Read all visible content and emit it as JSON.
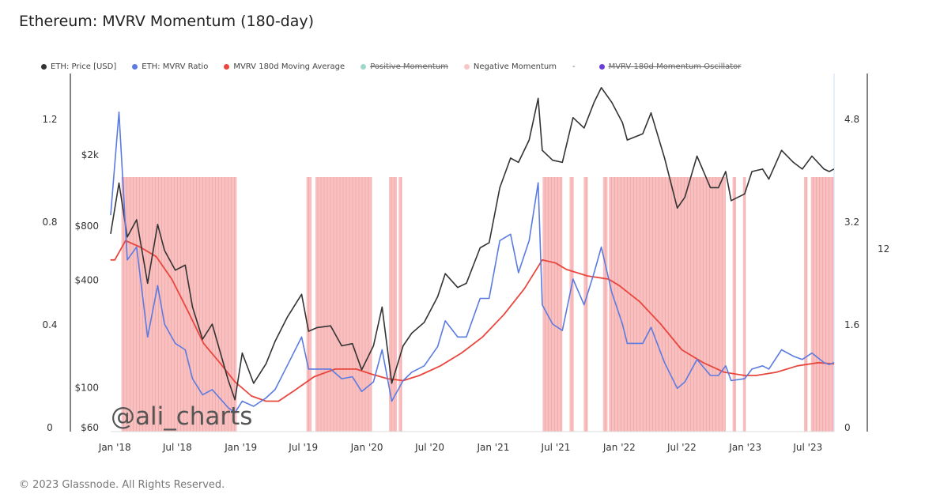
{
  "title": "Ethereum: MVRV Momentum (180-day)",
  "footer": "© 2023 Glassnode. All Rights Reserved.",
  "watermark": "@ali_charts",
  "legend": [
    {
      "label": "ETH: Price [USD]",
      "color": "#333333",
      "struck": false
    },
    {
      "label": "ETH: MVRV Ratio",
      "color": "#5b7be0",
      "struck": false
    },
    {
      "label": "MVRV 180d Moving Average",
      "color": "#e8473e",
      "struck": false
    },
    {
      "label": "Positive Momentum",
      "color": "#9fd8c8",
      "struck": true
    },
    {
      "label": "Negative Momentum",
      "color": "#f7c6c6",
      "struck": false
    },
    {
      "label": "-",
      "color": "",
      "struck": false,
      "separator": true
    },
    {
      "label": "MVRV 180d Momentum Oscillator",
      "color": "#6a3fd8",
      "struck": true
    }
  ],
  "chart_data": {
    "type": "line",
    "x_ticks": [
      "Jan '18",
      "Jul '18",
      "Jan '19",
      "Jul '19",
      "Jan '20",
      "Jul '20",
      "Jan '21",
      "Jul '21",
      "Jan '22",
      "Jul '22",
      "Jan '23",
      "Jul '23"
    ],
    "y_axis_left_mvrv_ma": {
      "ticks": [
        "0",
        "0.4",
        "0.8",
        "1.2"
      ],
      "range": [
        0,
        1.25
      ]
    },
    "y_axis_price_usd": {
      "scale": "log",
      "ticks": [
        "$60",
        "$100",
        "$400",
        "$800",
        "$2k"
      ],
      "tick_values": [
        60,
        100,
        400,
        800,
        2000
      ]
    },
    "y_axis_right_mvrv": {
      "ticks": [
        "0",
        "1.6",
        "3.2",
        "4.8"
      ],
      "range": [
        0,
        5.0
      ]
    },
    "y_axis_far_right": {
      "ticks": [
        "12"
      ]
    },
    "x_range": [
      "2017-12-20",
      "2023-09-15"
    ],
    "series": [
      {
        "name": "ETH: Price [USD]",
        "color": "#333333",
        "axis": "price",
        "points": [
          [
            "2017-12-20",
            720
          ],
          [
            "2018-01-13",
            1380
          ],
          [
            "2018-02-06",
            690
          ],
          [
            "2018-03-05",
            860
          ],
          [
            "2018-04-06",
            380
          ],
          [
            "2018-05-05",
            810
          ],
          [
            "2018-05-25",
            580
          ],
          [
            "2018-06-25",
            450
          ],
          [
            "2018-07-24",
            480
          ],
          [
            "2018-08-14",
            280
          ],
          [
            "2018-09-12",
            185
          ],
          [
            "2018-10-10",
            225
          ],
          [
            "2018-11-25",
            110
          ],
          [
            "2018-12-15",
            85
          ],
          [
            "2019-01-05",
            155
          ],
          [
            "2019-02-07",
            105
          ],
          [
            "2019-03-15",
            135
          ],
          [
            "2019-04-10",
            180
          ],
          [
            "2019-05-15",
            245
          ],
          [
            "2019-06-26",
            330
          ],
          [
            "2019-07-16",
            205
          ],
          [
            "2019-08-10",
            215
          ],
          [
            "2019-09-18",
            220
          ],
          [
            "2019-10-20",
            170
          ],
          [
            "2019-11-20",
            175
          ],
          [
            "2019-12-17",
            125
          ],
          [
            "2020-01-20",
            170
          ],
          [
            "2020-02-14",
            280
          ],
          [
            "2020-03-13",
            105
          ],
          [
            "2020-04-15",
            170
          ],
          [
            "2020-05-10",
            200
          ],
          [
            "2020-06-15",
            230
          ],
          [
            "2020-07-24",
            320
          ],
          [
            "2020-08-15",
            430
          ],
          [
            "2020-09-20",
            360
          ],
          [
            "2020-10-15",
            380
          ],
          [
            "2020-11-24",
            600
          ],
          [
            "2020-12-20",
            640
          ],
          [
            "2021-01-20",
            1300
          ],
          [
            "2021-02-20",
            1900
          ],
          [
            "2021-03-15",
            1800
          ],
          [
            "2021-04-15",
            2400
          ],
          [
            "2021-05-11",
            4100
          ],
          [
            "2021-05-23",
            2100
          ],
          [
            "2021-06-22",
            1850
          ],
          [
            "2021-07-20",
            1800
          ],
          [
            "2021-08-20",
            3200
          ],
          [
            "2021-09-21",
            2800
          ],
          [
            "2021-10-20",
            3900
          ],
          [
            "2021-11-10",
            4700
          ],
          [
            "2021-12-10",
            3900
          ],
          [
            "2022-01-10",
            3000
          ],
          [
            "2022-01-24",
            2400
          ],
          [
            "2022-03-10",
            2600
          ],
          [
            "2022-04-03",
            3400
          ],
          [
            "2022-05-12",
            1900
          ],
          [
            "2022-06-18",
            1000
          ],
          [
            "2022-07-10",
            1150
          ],
          [
            "2022-08-14",
            1950
          ],
          [
            "2022-09-22",
            1300
          ],
          [
            "2022-10-15",
            1300
          ],
          [
            "2022-11-05",
            1600
          ],
          [
            "2022-11-21",
            1100
          ],
          [
            "2022-12-30",
            1200
          ],
          [
            "2023-01-20",
            1600
          ],
          [
            "2023-02-20",
            1650
          ],
          [
            "2023-03-10",
            1450
          ],
          [
            "2023-04-16",
            2100
          ],
          [
            "2023-05-20",
            1800
          ],
          [
            "2023-06-15",
            1650
          ],
          [
            "2023-07-13",
            1950
          ],
          [
            "2023-08-17",
            1650
          ],
          [
            "2023-09-01",
            1600
          ],
          [
            "2023-09-14",
            1650
          ]
        ]
      },
      {
        "name": "ETH: MVRV Ratio",
        "color": "#5b7be0",
        "axis": "mvrv",
        "points": [
          [
            "2017-12-20",
            3.3
          ],
          [
            "2018-01-13",
            4.9
          ],
          [
            "2018-02-06",
            2.6
          ],
          [
            "2018-03-05",
            2.8
          ],
          [
            "2018-04-06",
            1.4
          ],
          [
            "2018-05-05",
            2.2
          ],
          [
            "2018-05-25",
            1.6
          ],
          [
            "2018-06-25",
            1.3
          ],
          [
            "2018-07-24",
            1.2
          ],
          [
            "2018-08-14",
            0.75
          ],
          [
            "2018-09-12",
            0.5
          ],
          [
            "2018-10-10",
            0.58
          ],
          [
            "2018-11-25",
            0.3
          ],
          [
            "2018-12-15",
            0.22
          ],
          [
            "2019-01-05",
            0.4
          ],
          [
            "2019-02-07",
            0.32
          ],
          [
            "2019-03-15",
            0.45
          ],
          [
            "2019-04-10",
            0.58
          ],
          [
            "2019-05-15",
            0.95
          ],
          [
            "2019-06-26",
            1.4
          ],
          [
            "2019-07-16",
            0.9
          ],
          [
            "2019-08-10",
            0.9
          ],
          [
            "2019-09-18",
            0.9
          ],
          [
            "2019-10-20",
            0.75
          ],
          [
            "2019-11-20",
            0.78
          ],
          [
            "2019-12-17",
            0.55
          ],
          [
            "2020-01-20",
            0.7
          ],
          [
            "2020-02-14",
            1.2
          ],
          [
            "2020-03-13",
            0.4
          ],
          [
            "2020-04-15",
            0.72
          ],
          [
            "2020-05-10",
            0.85
          ],
          [
            "2020-06-15",
            0.95
          ],
          [
            "2020-07-24",
            1.25
          ],
          [
            "2020-08-15",
            1.65
          ],
          [
            "2020-09-20",
            1.4
          ],
          [
            "2020-10-15",
            1.4
          ],
          [
            "2020-11-24",
            2.0
          ],
          [
            "2020-12-20",
            2.0
          ],
          [
            "2021-01-20",
            2.9
          ],
          [
            "2021-02-20",
            3.0
          ],
          [
            "2021-03-15",
            2.4
          ],
          [
            "2021-04-15",
            2.9
          ],
          [
            "2021-05-11",
            3.8
          ],
          [
            "2021-05-23",
            1.9
          ],
          [
            "2021-06-22",
            1.6
          ],
          [
            "2021-07-20",
            1.5
          ],
          [
            "2021-08-20",
            2.3
          ],
          [
            "2021-09-21",
            1.9
          ],
          [
            "2021-10-20",
            2.4
          ],
          [
            "2021-11-10",
            2.8
          ],
          [
            "2021-12-10",
            2.1
          ],
          [
            "2022-01-10",
            1.6
          ],
          [
            "2022-01-24",
            1.3
          ],
          [
            "2022-03-10",
            1.3
          ],
          [
            "2022-04-03",
            1.55
          ],
          [
            "2022-05-12",
            1.0
          ],
          [
            "2022-06-18",
            0.6
          ],
          [
            "2022-07-10",
            0.7
          ],
          [
            "2022-08-14",
            1.05
          ],
          [
            "2022-09-22",
            0.8
          ],
          [
            "2022-10-15",
            0.8
          ],
          [
            "2022-11-05",
            0.95
          ],
          [
            "2022-11-21",
            0.72
          ],
          [
            "2022-12-30",
            0.75
          ],
          [
            "2023-01-20",
            0.9
          ],
          [
            "2023-02-20",
            0.95
          ],
          [
            "2023-03-10",
            0.9
          ],
          [
            "2023-04-16",
            1.2
          ],
          [
            "2023-05-20",
            1.1
          ],
          [
            "2023-06-15",
            1.05
          ],
          [
            "2023-07-13",
            1.15
          ],
          [
            "2023-08-17",
            1.0
          ],
          [
            "2023-09-01",
            0.97
          ],
          [
            "2023-09-14",
            1.0
          ]
        ]
      },
      {
        "name": "MVRV 180d Moving Average",
        "color": "#e8473e",
        "axis": "mvrv",
        "points": [
          [
            "2017-12-20",
            2.6
          ],
          [
            "2018-01-01",
            2.6
          ],
          [
            "2018-02-01",
            2.9
          ],
          [
            "2018-03-15",
            2.8
          ],
          [
            "2018-05-01",
            2.65
          ],
          [
            "2018-06-15",
            2.3
          ],
          [
            "2018-08-01",
            1.8
          ],
          [
            "2018-09-15",
            1.3
          ],
          [
            "2018-11-01",
            1.0
          ],
          [
            "2018-12-15",
            0.7
          ],
          [
            "2019-02-01",
            0.48
          ],
          [
            "2019-03-15",
            0.4
          ],
          [
            "2019-04-20",
            0.4
          ],
          [
            "2019-06-01",
            0.55
          ],
          [
            "2019-08-01",
            0.78
          ],
          [
            "2019-10-01",
            0.9
          ],
          [
            "2019-12-01",
            0.9
          ],
          [
            "2020-01-15",
            0.82
          ],
          [
            "2020-03-01",
            0.75
          ],
          [
            "2020-04-15",
            0.72
          ],
          [
            "2020-06-01",
            0.8
          ],
          [
            "2020-08-01",
            0.95
          ],
          [
            "2020-10-01",
            1.15
          ],
          [
            "2020-12-01",
            1.4
          ],
          [
            "2021-02-01",
            1.75
          ],
          [
            "2021-04-01",
            2.15
          ],
          [
            "2021-05-23",
            2.6
          ],
          [
            "2021-07-01",
            2.55
          ],
          [
            "2021-08-01",
            2.45
          ],
          [
            "2021-10-01",
            2.35
          ],
          [
            "2021-12-01",
            2.3
          ],
          [
            "2022-01-01",
            2.2
          ],
          [
            "2022-03-01",
            1.95
          ],
          [
            "2022-05-01",
            1.6
          ],
          [
            "2022-07-01",
            1.2
          ],
          [
            "2022-09-01",
            1.0
          ],
          [
            "2022-11-01",
            0.85
          ],
          [
            "2022-12-30",
            0.8
          ],
          [
            "2023-02-01",
            0.8
          ],
          [
            "2023-04-01",
            0.85
          ],
          [
            "2023-06-01",
            0.95
          ],
          [
            "2023-08-01",
            1.0
          ],
          [
            "2023-09-14",
            0.98
          ]
        ]
      }
    ],
    "negative_momentum_periods": [
      [
        "2018-01-20",
        "2018-12-20"
      ],
      [
        "2019-07-10",
        "2019-07-25"
      ],
      [
        "2019-08-05",
        "2020-01-15"
      ],
      [
        "2020-03-05",
        "2020-03-28"
      ],
      [
        "2020-04-02",
        "2020-04-12"
      ],
      [
        "2021-05-24",
        "2021-07-20"
      ],
      [
        "2021-08-10",
        "2021-08-22"
      ],
      [
        "2021-09-20",
        "2021-10-02"
      ],
      [
        "2021-11-15",
        "2021-11-28"
      ],
      [
        "2021-12-02",
        "2022-11-05"
      ],
      [
        "2022-11-25",
        "2022-12-05"
      ],
      [
        "2022-12-25",
        "2023-01-02"
      ],
      [
        "2023-06-20",
        "2023-06-30"
      ],
      [
        "2023-07-10",
        "2023-09-14"
      ]
    ]
  }
}
